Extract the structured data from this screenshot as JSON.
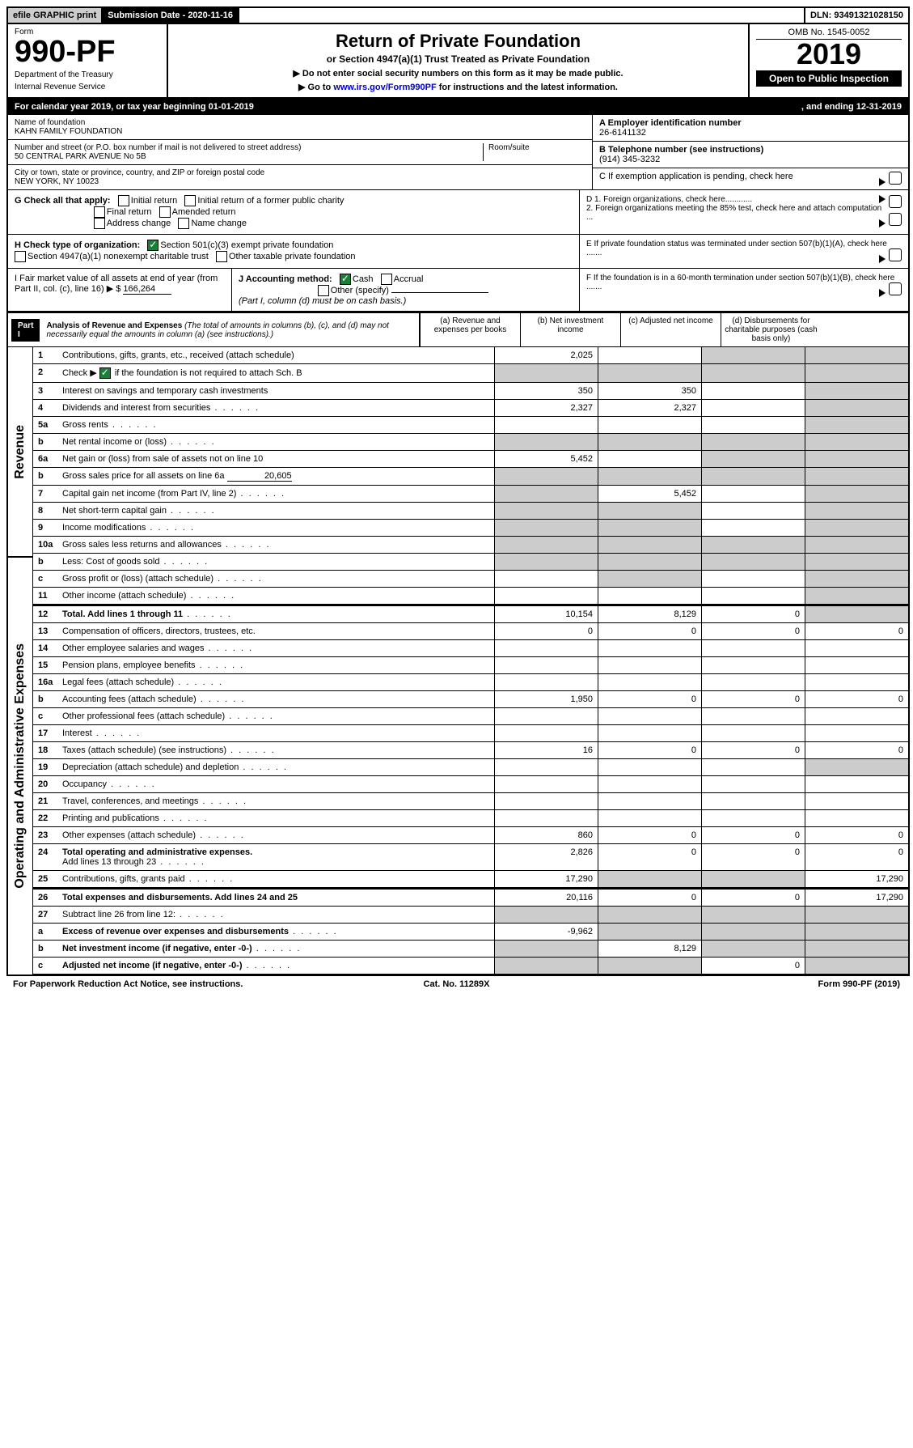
{
  "top": {
    "efile_label": "efile GRAPHIC print",
    "submission_label": "Submission Date - 2020-11-16",
    "dln_label": "DLN: 93491321028150"
  },
  "header": {
    "form_label": "Form",
    "form_no": "990-PF",
    "dept": "Department of the Treasury",
    "irs": "Internal Revenue Service",
    "title": "Return of Private Foundation",
    "subtitle": "or Section 4947(a)(1) Trust Treated as Private Foundation",
    "note1": "▶ Do not enter social security numbers on this form as it may be made public.",
    "note2": "▶ Go to ",
    "link": "www.irs.gov/Form990PF",
    "note3": " for instructions and the latest information.",
    "omb": "OMB No. 1545-0052",
    "year": "2019",
    "open": "Open to Public Inspection"
  },
  "cal": {
    "text": "For calendar year 2019, or tax year beginning 01-01-2019",
    "ending": ", and ending 12-31-2019"
  },
  "id": {
    "name_label": "Name of foundation",
    "name": "KAHN FAMILY FOUNDATION",
    "addr_label": "Number and street (or P.O. box number if mail is not delivered to street address)",
    "addr": "50 CENTRAL PARK AVENUE No 5B",
    "room_label": "Room/suite",
    "city_label": "City or town, state or province, country, and ZIP or foreign postal code",
    "city": "NEW YORK, NY  10023",
    "ein_label": "A Employer identification number",
    "ein": "26-6141132",
    "tel_label": "B Telephone number (see instructions)",
    "tel": "(914) 345-3232",
    "c_label": "C If exemption application is pending, check here",
    "d1": "D 1. Foreign organizations, check here............",
    "d2": "2. Foreign organizations meeting the 85% test, check here and attach computation ...",
    "e": "E  If private foundation status was terminated under section 507(b)(1)(A), check here .......",
    "f": "F  If the foundation is in a 60-month termination under section 507(b)(1)(B), check here ......."
  },
  "g": {
    "label": "G Check all that apply:",
    "initial": "Initial return",
    "initial_former": "Initial return of a former public charity",
    "final": "Final return",
    "amended": "Amended return",
    "addr_change": "Address change",
    "name_change": "Name change"
  },
  "h": {
    "label": "H Check type of organization:",
    "s501": "Section 501(c)(3) exempt private foundation",
    "s4947": "Section 4947(a)(1) nonexempt charitable trust",
    "other": "Other taxable private foundation"
  },
  "i": {
    "label": "I Fair market value of all assets at end of year (from Part II, col. (c), line 16) ▶ $",
    "val": "166,264"
  },
  "j": {
    "label": "J Accounting method:",
    "cash": "Cash",
    "accrual": "Accrual",
    "other": "Other (specify)",
    "note": "(Part I, column (d) must be on cash basis.)"
  },
  "part1": {
    "label": "Part I",
    "title": "Analysis of Revenue and Expenses",
    "note": "(The total of amounts in columns (b), (c), and (d) may not necessarily equal the amounts in column (a) (see instructions).)",
    "cols": {
      "a": "(a)   Revenue and expenses per books",
      "b": "(b)  Net investment income",
      "c": "(c)  Adjusted net income",
      "d": "(d)  Disbursements for charitable purposes (cash basis only)"
    },
    "revenue_label": "Revenue",
    "expenses_label": "Operating and Administrative Expenses"
  },
  "rows": {
    "r1": {
      "n": "1",
      "t": "Contributions, gifts, grants, etc., received (attach schedule)",
      "a": "2,025"
    },
    "r2": {
      "n": "2",
      "t": "Check ▶",
      "t2": " if the foundation is not required to attach Sch. B"
    },
    "r3": {
      "n": "3",
      "t": "Interest on savings and temporary cash investments",
      "a": "350",
      "b": "350"
    },
    "r4": {
      "n": "4",
      "t": "Dividends and interest from securities",
      "a": "2,327",
      "b": "2,327"
    },
    "r5a": {
      "n": "5a",
      "t": "Gross rents"
    },
    "r5b": {
      "n": "b",
      "t": "Net rental income or (loss)"
    },
    "r6a": {
      "n": "6a",
      "t": "Net gain or (loss) from sale of assets not on line 10",
      "a": "5,452"
    },
    "r6b": {
      "n": "b",
      "t": "Gross sales price for all assets on line 6a",
      "v": "20,605"
    },
    "r7": {
      "n": "7",
      "t": "Capital gain net income (from Part IV, line 2)",
      "b": "5,452"
    },
    "r8": {
      "n": "8",
      "t": "Net short-term capital gain"
    },
    "r9": {
      "n": "9",
      "t": "Income modifications"
    },
    "r10a": {
      "n": "10a",
      "t": "Gross sales less returns and allowances"
    },
    "r10b": {
      "n": "b",
      "t": "Less: Cost of goods sold"
    },
    "r10c": {
      "n": "c",
      "t": "Gross profit or (loss) (attach schedule)"
    },
    "r11": {
      "n": "11",
      "t": "Other income (attach schedule)"
    },
    "r12": {
      "n": "12",
      "t": "Total. Add lines 1 through 11",
      "a": "10,154",
      "b": "8,129",
      "c": "0"
    },
    "r13": {
      "n": "13",
      "t": "Compensation of officers, directors, trustees, etc.",
      "a": "0",
      "b": "0",
      "c": "0",
      "d": "0"
    },
    "r14": {
      "n": "14",
      "t": "Other employee salaries and wages"
    },
    "r15": {
      "n": "15",
      "t": "Pension plans, employee benefits"
    },
    "r16a": {
      "n": "16a",
      "t": "Legal fees (attach schedule)"
    },
    "r16b": {
      "n": "b",
      "t": "Accounting fees (attach schedule)",
      "a": "1,950",
      "b": "0",
      "c": "0",
      "d": "0"
    },
    "r16c": {
      "n": "c",
      "t": "Other professional fees (attach schedule)"
    },
    "r17": {
      "n": "17",
      "t": "Interest"
    },
    "r18": {
      "n": "18",
      "t": "Taxes (attach schedule) (see instructions)",
      "a": "16",
      "b": "0",
      "c": "0",
      "d": "0"
    },
    "r19": {
      "n": "19",
      "t": "Depreciation (attach schedule) and depletion"
    },
    "r20": {
      "n": "20",
      "t": "Occupancy"
    },
    "r21": {
      "n": "21",
      "t": "Travel, conferences, and meetings"
    },
    "r22": {
      "n": "22",
      "t": "Printing and publications"
    },
    "r23": {
      "n": "23",
      "t": "Other expenses (attach schedule)",
      "a": "860",
      "b": "0",
      "c": "0",
      "d": "0"
    },
    "r24": {
      "n": "24",
      "t": "Total operating and administrative expenses.",
      "t2": "Add lines 13 through 23",
      "a": "2,826",
      "b": "0",
      "c": "0",
      "d": "0"
    },
    "r25": {
      "n": "25",
      "t": "Contributions, gifts, grants paid",
      "a": "17,290",
      "d": "17,290"
    },
    "r26": {
      "n": "26",
      "t": "Total expenses and disbursements. Add lines 24 and 25",
      "a": "20,116",
      "b": "0",
      "c": "0",
      "d": "17,290"
    },
    "r27": {
      "n": "27",
      "t": "Subtract line 26 from line 12:"
    },
    "r27a": {
      "n": "a",
      "t": "Excess of revenue over expenses and disbursements",
      "a": "-9,962"
    },
    "r27b": {
      "n": "b",
      "t": "Net investment income (if negative, enter -0-)",
      "b": "8,129"
    },
    "r27c": {
      "n": "c",
      "t": "Adjusted net income (if negative, enter -0-)",
      "c": "0"
    }
  },
  "footer": {
    "l": "For Paperwork Reduction Act Notice, see instructions.",
    "c": "Cat. No. 11289X",
    "r": "Form 990-PF (2019)"
  }
}
